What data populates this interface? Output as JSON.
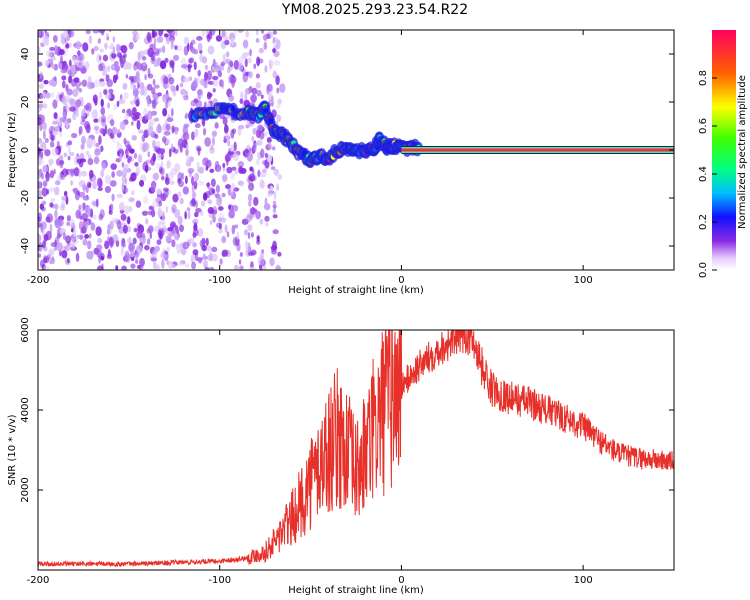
{
  "title": "YM08.2025.293.23.54.R22",
  "chart_data": [
    {
      "type": "heatmap",
      "name": "spectrogram",
      "xlabel": "Height of straight line (km)",
      "ylabel": "Frequency (Hz)",
      "xlim": [
        -200,
        150
      ],
      "ylim": [
        -50,
        50
      ],
      "xticks": [
        -200,
        -100,
        0,
        100
      ],
      "yticks": [
        -40,
        -20,
        0,
        20,
        40
      ],
      "colorbar": {
        "label": "Normalized spectral amplitude",
        "range": [
          0,
          1
        ],
        "ticks": [
          0.0,
          0.2,
          0.4,
          0.6,
          0.8
        ]
      },
      "noise_region_x": [
        -200,
        -75
      ],
      "track": [
        {
          "x": -115,
          "y": 15
        },
        {
          "x": -105,
          "y": 16
        },
        {
          "x": -95,
          "y": 16
        },
        {
          "x": -85,
          "y": 16
        },
        {
          "x": -80,
          "y": 14
        },
        {
          "x": -75,
          "y": 17
        },
        {
          "x": -70,
          "y": 8
        },
        {
          "x": -65,
          "y": 6
        },
        {
          "x": -60,
          "y": 2
        },
        {
          "x": -55,
          "y": -2
        },
        {
          "x": -50,
          "y": -4
        },
        {
          "x": -45,
          "y": -3
        },
        {
          "x": -40,
          "y": -3
        },
        {
          "x": -35,
          "y": 0
        },
        {
          "x": -30,
          "y": 1
        },
        {
          "x": -25,
          "y": -1
        },
        {
          "x": -20,
          "y": 0
        },
        {
          "x": -15,
          "y": 1
        },
        {
          "x": -12,
          "y": 4
        },
        {
          "x": -8,
          "y": 1
        },
        {
          "x": -4,
          "y": 2
        },
        {
          "x": 0,
          "y": 1
        },
        {
          "x": 5,
          "y": 1
        },
        {
          "x": 10,
          "y": 1
        }
      ],
      "carrier": {
        "x_start": 0,
        "x_end": 150,
        "y": 0
      }
    },
    {
      "type": "line",
      "name": "snr",
      "xlabel": "Height of straight line (km)",
      "ylabel": "SNR (10 * v/v)",
      "xlim": [
        -200,
        150
      ],
      "ylim": [
        0,
        6000
      ],
      "xticks": [
        -200,
        -100,
        0,
        100
      ],
      "yticks": [
        2000,
        4000,
        6000
      ],
      "series": [
        {
          "name": "SNR",
          "color": "#e8302a",
          "x": [
            -200,
            -150,
            -100,
            -85,
            -75,
            -70,
            -65,
            -60,
            -55,
            -50,
            -45,
            -40,
            -35,
            -30,
            -25,
            -20,
            -15,
            -10,
            -5,
            0,
            10,
            20,
            30,
            35,
            40,
            45,
            50,
            60,
            70,
            80,
            90,
            100,
            110,
            120,
            130,
            140,
            150
          ],
          "values": [
            150,
            150,
            220,
            300,
            450,
            700,
            1000,
            1300,
            1700,
            2200,
            2600,
            3000,
            3300,
            3000,
            2400,
            2900,
            3500,
            4000,
            4300,
            4600,
            5100,
            5500,
            5800,
            5900,
            5700,
            5000,
            4500,
            4300,
            4200,
            4000,
            3800,
            3600,
            3200,
            2900,
            2800,
            2750,
            2700
          ]
        }
      ]
    }
  ]
}
